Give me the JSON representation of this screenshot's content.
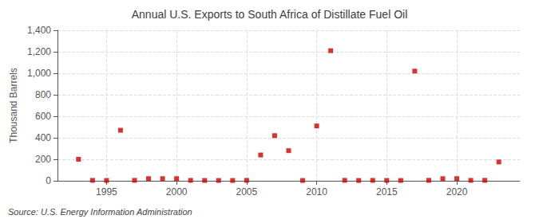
{
  "chart_data": {
    "type": "scatter",
    "title": "Annual U.S. Exports to South Africa of Distillate Fuel Oil",
    "ylabel": "Thousand Barrels",
    "annotations": [
      "Source: U.S. Energy Information Administration"
    ],
    "x": [
      1993,
      1994,
      1995,
      1996,
      1997,
      1998,
      1999,
      2000,
      2001,
      2002,
      2003,
      2004,
      2005,
      2006,
      2007,
      2008,
      2009,
      2010,
      2011,
      2012,
      2013,
      2014,
      2015,
      2016,
      2017,
      2018,
      2019,
      2020,
      2021,
      2022,
      2023
    ],
    "values": [
      200,
      4,
      3,
      470,
      4,
      20,
      20,
      20,
      4,
      3,
      3,
      3,
      4,
      240,
      420,
      280,
      3,
      510,
      1210,
      4,
      3,
      4,
      3,
      3,
      1020,
      4,
      20,
      20,
      4,
      4,
      175
    ],
    "color": "#cc0000",
    "marker": "square",
    "xlim": [
      1991.5,
      2024.5
    ],
    "xticks": [
      1995,
      2000,
      2005,
      2010,
      2015,
      2020
    ],
    "ylim": [
      0,
      1400
    ],
    "yticks": [
      0,
      200,
      400,
      600,
      800,
      {
        "value": 1000,
        "label": "1,000"
      },
      {
        "value": 1200,
        "label": "1,200"
      },
      {
        "value": 1400,
        "label": "1,400"
      }
    ],
    "grid": true
  }
}
